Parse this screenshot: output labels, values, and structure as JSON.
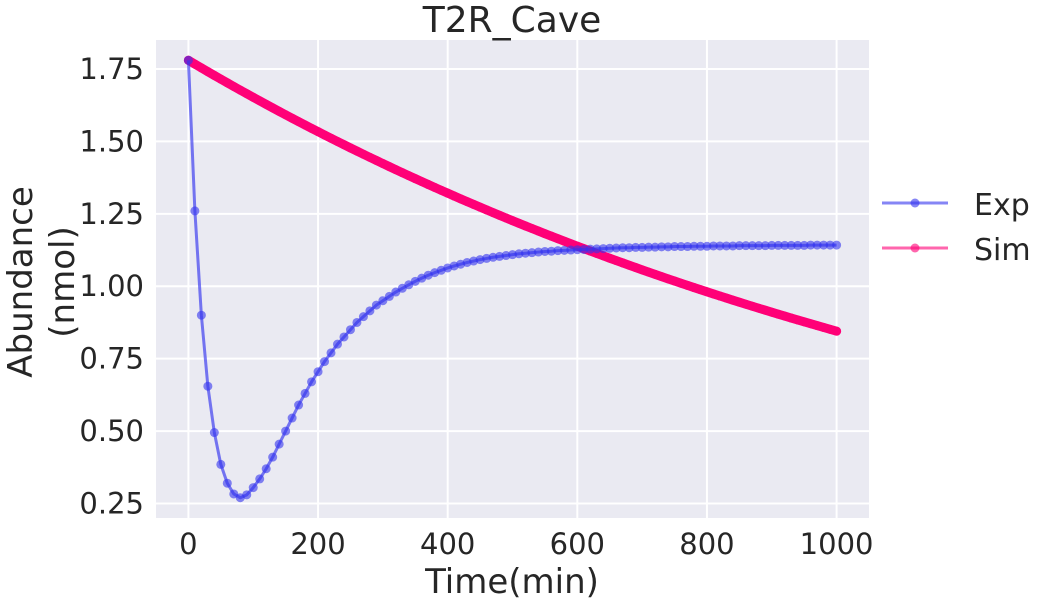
{
  "chart_data": {
    "type": "line",
    "title": "T2R_Cave",
    "xlabel": "Time(min)",
    "ylabel": [
      "Abundance",
      "(nmol)"
    ],
    "xlim": [
      -50,
      1050
    ],
    "ylim": [
      0.2,
      1.85
    ],
    "xticks": [
      0,
      200,
      400,
      600,
      800,
      1000
    ],
    "yticks": [
      0.25,
      0.5,
      0.75,
      1.0,
      1.25,
      1.5,
      1.75
    ],
    "xtick_labels": [
      "0",
      "200",
      "400",
      "600",
      "800",
      "1000"
    ],
    "ytick_labels": [
      "0.25",
      "0.50",
      "0.75",
      "1.00",
      "1.25",
      "1.50",
      "1.75"
    ],
    "grid": true,
    "legend_position": "right",
    "series": [
      {
        "name": "Exp",
        "color": "#3333ee",
        "x": [
          0,
          10,
          20,
          30,
          40,
          50,
          60,
          70,
          80,
          90,
          100,
          110,
          120,
          130,
          140,
          150,
          160,
          170,
          180,
          190,
          200,
          210,
          220,
          230,
          240,
          250,
          260,
          270,
          280,
          290,
          300,
          310,
          320,
          330,
          340,
          350,
          360,
          370,
          380,
          390,
          400,
          410,
          420,
          430,
          440,
          450,
          460,
          470,
          480,
          490,
          500,
          510,
          520,
          530,
          540,
          550,
          560,
          570,
          580,
          590,
          600,
          610,
          620,
          630,
          640,
          650,
          660,
          670,
          680,
          690,
          700,
          710,
          720,
          730,
          740,
          750,
          760,
          770,
          780,
          790,
          800,
          810,
          820,
          830,
          840,
          850,
          860,
          870,
          880,
          890,
          900,
          910,
          920,
          930,
          940,
          950,
          960,
          970,
          980,
          990,
          1000
        ],
        "y": [
          1.78,
          1.26,
          0.9,
          0.655,
          0.495,
          0.385,
          0.32,
          0.283,
          0.27,
          0.28,
          0.305,
          0.335,
          0.37,
          0.41,
          0.455,
          0.5,
          0.545,
          0.59,
          0.63,
          0.67,
          0.705,
          0.74,
          0.77,
          0.8,
          0.825,
          0.85,
          0.875,
          0.895,
          0.915,
          0.935,
          0.95,
          0.965,
          0.98,
          0.993,
          1.005,
          1.017,
          1.028,
          1.038,
          1.047,
          1.055,
          1.063,
          1.07,
          1.076,
          1.082,
          1.087,
          1.092,
          1.096,
          1.1,
          1.103,
          1.106,
          1.109,
          1.112,
          1.114,
          1.116,
          1.118,
          1.12,
          1.121,
          1.123,
          1.124,
          1.125,
          1.126,
          1.127,
          1.128,
          1.129,
          1.13,
          1.131,
          1.132,
          1.133,
          1.133,
          1.134,
          1.134,
          1.135,
          1.135,
          1.136,
          1.136,
          1.137,
          1.137,
          1.137,
          1.138,
          1.138,
          1.138,
          1.139,
          1.139,
          1.139,
          1.139,
          1.14,
          1.14,
          1.14,
          1.14,
          1.14,
          1.141,
          1.141,
          1.141,
          1.141,
          1.141,
          1.141,
          1.142,
          1.142,
          1.142,
          1.142,
          1.142
        ]
      },
      {
        "name": "Sim",
        "color": "#ff0077",
        "function": "y = 1.78 * exp(-0.000744 * x)",
        "x": [
          0,
          10,
          20,
          30,
          40,
          50,
          60,
          70,
          80,
          90,
          100,
          110,
          120,
          130,
          140,
          150,
          160,
          170,
          180,
          190,
          200,
          210,
          220,
          230,
          240,
          250,
          260,
          270,
          280,
          290,
          300,
          310,
          320,
          330,
          340,
          350,
          360,
          370,
          380,
          390,
          400,
          410,
          420,
          430,
          440,
          450,
          460,
          470,
          480,
          490,
          500,
          510,
          520,
          530,
          540,
          550,
          560,
          570,
          580,
          590,
          600,
          610,
          620,
          630,
          640,
          650,
          660,
          670,
          680,
          690,
          700,
          710,
          720,
          730,
          740,
          750,
          760,
          770,
          780,
          790,
          800,
          810,
          820,
          830,
          840,
          850,
          860,
          870,
          880,
          890,
          900,
          910,
          920,
          930,
          940,
          950,
          960,
          970,
          980,
          990,
          1000
        ],
        "y_start": 1.78,
        "y_end": 0.845
      }
    ]
  }
}
